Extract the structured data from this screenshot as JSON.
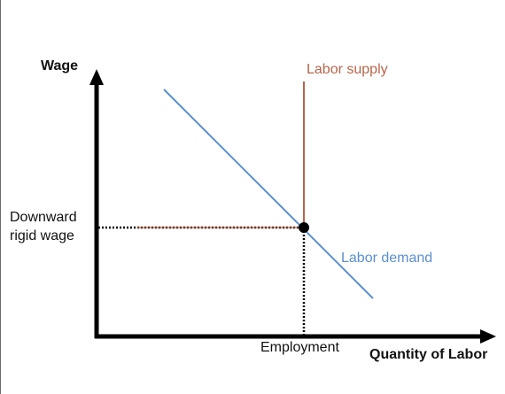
{
  "axes": {
    "y_label": "Wage",
    "x_label": "Quantity of Labor"
  },
  "curves": {
    "supply_label": "Labor supply",
    "demand_label": "Labor demand"
  },
  "equilibrium": {
    "wage_label_line1": "Downward",
    "wage_label_line2": "rigid wage",
    "employment_label": "Employment"
  },
  "colors": {
    "axis": "#000000",
    "supply": "#b8654a",
    "demand": "#5b8fd0",
    "guides": "#000000"
  }
}
